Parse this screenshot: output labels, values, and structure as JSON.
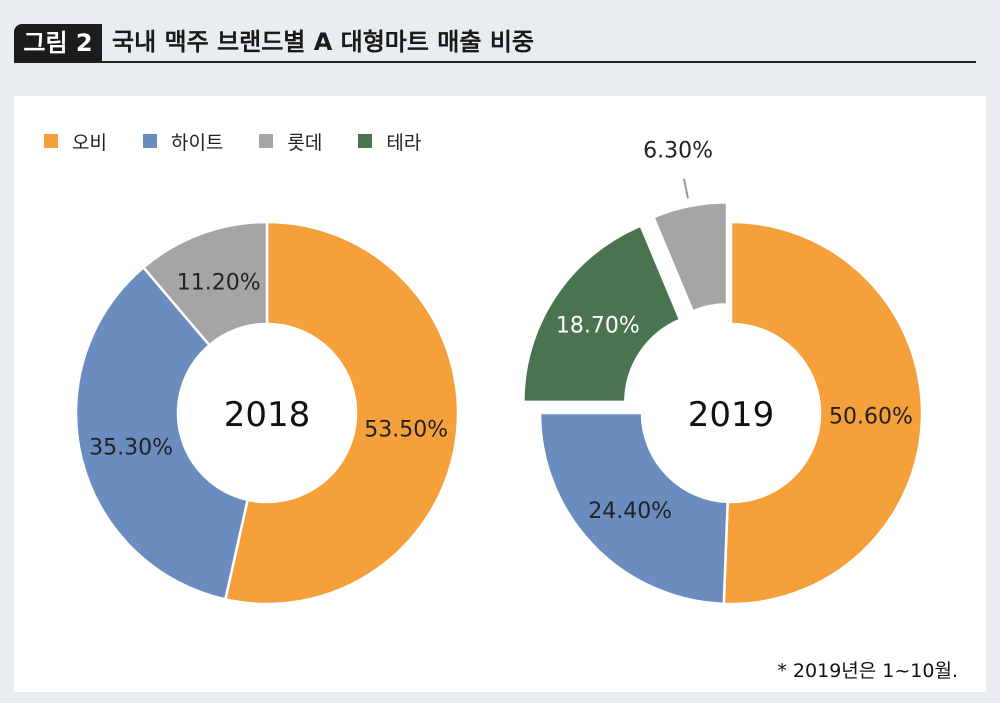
{
  "header": {
    "badge": "그림 2",
    "title": "국내 맥주 브랜드별 A 대형마트 매출 비중"
  },
  "footnote": "* 2019년은 1~10월.",
  "chart_data": [
    {
      "type": "donut",
      "title": "2018",
      "legend_position": "top-left",
      "series": [
        {
          "name": "오비",
          "value": 53.5,
          "label": "53.50%",
          "color": "#f5a03b"
        },
        {
          "name": "하이트",
          "value": 35.3,
          "label": "35.30%",
          "color": "#6a8cbf"
        },
        {
          "name": "롯데",
          "value": 11.2,
          "label": "11.20%",
          "color": "#a5a5a5"
        }
      ]
    },
    {
      "type": "donut",
      "title": "2019",
      "legend_position": "top-left",
      "series": [
        {
          "name": "오비",
          "value": 50.6,
          "label": "50.60%",
          "color": "#f5a03b"
        },
        {
          "name": "하이트",
          "value": 24.4,
          "label": "24.40%",
          "color": "#6a8cbf"
        },
        {
          "name": "테라",
          "value": 18.7,
          "label": "18.70%",
          "color": "#4a7450",
          "exploded": true
        },
        {
          "name": "롯데",
          "value": 6.3,
          "label": "6.30%",
          "color": "#a5a5a5",
          "exploded": true
        }
      ]
    }
  ],
  "legend": [
    {
      "name": "오비",
      "color": "#f5a03b"
    },
    {
      "name": "하이트",
      "color": "#6a8cbf"
    },
    {
      "name": "롯데",
      "color": "#a5a5a5"
    },
    {
      "name": "테라",
      "color": "#4a7450"
    }
  ]
}
